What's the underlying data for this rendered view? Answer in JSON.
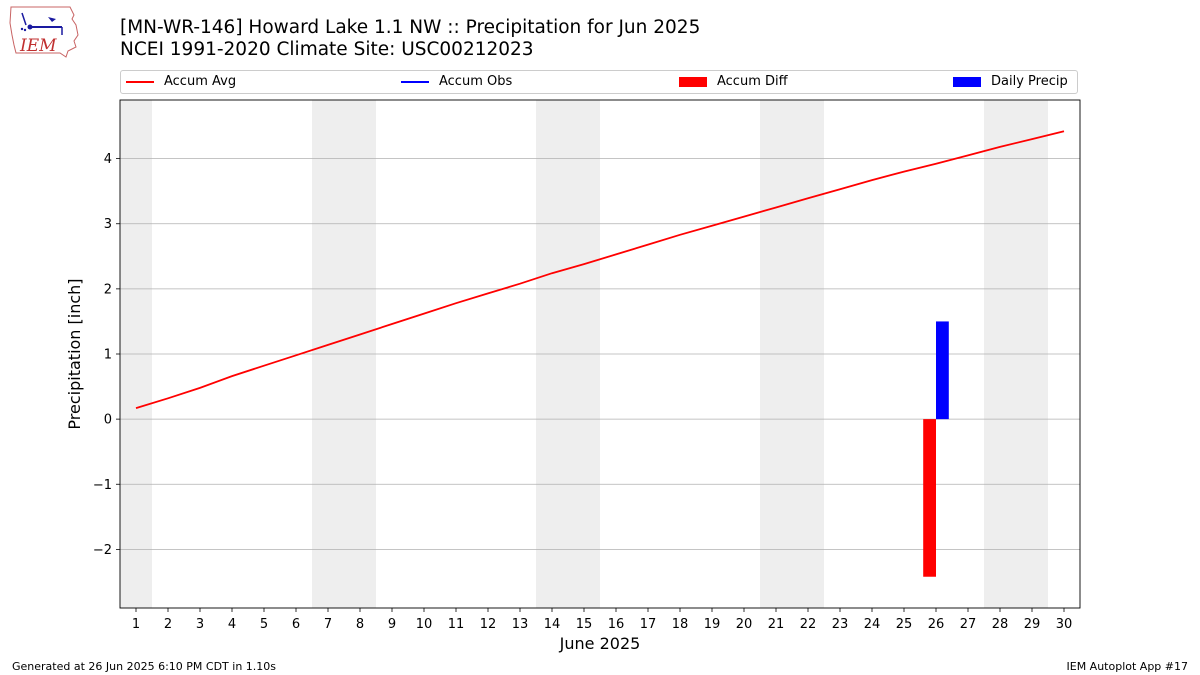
{
  "header": {
    "title_line1": "[MN-WR-146] Howard Lake 1.1 NW :: Precipitation for Jun 2025",
    "title_line2": "NCEI 1991-2020 Climate Site: USC00212023",
    "logo_text": "IEM"
  },
  "footer": {
    "generated": "Generated at 26 Jun 2025 6:10 PM CDT in 1.10s",
    "app": "IEM Autoplot App #17"
  },
  "colors": {
    "accum_avg": "#ff0000",
    "accum_obs": "#0000ff",
    "accum_diff": "#ff0000",
    "daily_precip": "#0000ff",
    "weekend_shade": "#eeeeee",
    "grid": "#b0b0b0"
  },
  "chart_data": {
    "type": "line",
    "xlabel": "June 2025",
    "ylabel": "Precipitation [inch]",
    "xlim": [
      0.5,
      30.5
    ],
    "ylim": [
      -2.9,
      4.9
    ],
    "x_ticks": [
      1,
      2,
      3,
      4,
      5,
      6,
      7,
      8,
      9,
      10,
      11,
      12,
      13,
      14,
      15,
      16,
      17,
      18,
      19,
      20,
      21,
      22,
      23,
      24,
      25,
      26,
      27,
      28,
      29,
      30
    ],
    "y_ticks": [
      -2,
      -1,
      0,
      1,
      2,
      3,
      4
    ],
    "y_tick_labels": [
      "−2",
      "−1",
      "0",
      "1",
      "2",
      "3",
      "4"
    ],
    "grid": "y",
    "legend_position": "top",
    "weekend_ranges": [
      [
        0.5,
        1.5
      ],
      [
        6.5,
        8.5
      ],
      [
        13.5,
        15.5
      ],
      [
        20.5,
        22.5
      ],
      [
        27.5,
        29.5
      ]
    ],
    "legend": [
      {
        "label": "Accum Avg",
        "kind": "line",
        "color": "#ff0000"
      },
      {
        "label": "Accum Obs",
        "kind": "line",
        "color": "#0000ff"
      },
      {
        "label": "Accum Diff",
        "kind": "bar",
        "color": "#ff0000"
      },
      {
        "label": "Daily Precip",
        "kind": "bar",
        "color": "#0000ff"
      }
    ],
    "series": [
      {
        "name": "Accum Avg",
        "type": "line",
        "x": [
          1,
          2,
          3,
          4,
          5,
          6,
          7,
          8,
          9,
          10,
          11,
          12,
          13,
          14,
          15,
          16,
          17,
          18,
          19,
          20,
          21,
          22,
          23,
          24,
          25,
          26,
          27,
          28,
          29,
          30
        ],
        "values": [
          0.17,
          0.32,
          0.48,
          0.66,
          0.82,
          0.98,
          1.14,
          1.3,
          1.46,
          1.62,
          1.78,
          1.93,
          2.08,
          2.24,
          2.38,
          2.53,
          2.68,
          2.83,
          2.97,
          3.11,
          3.25,
          3.39,
          3.53,
          3.67,
          3.8,
          3.92,
          4.05,
          4.18,
          4.3,
          4.42
        ]
      },
      {
        "name": "Accum Diff",
        "type": "bar",
        "x": [
          25.8
        ],
        "values": [
          -2.42
        ]
      },
      {
        "name": "Daily Precip",
        "type": "bar",
        "x": [
          26.2
        ],
        "values": [
          1.5
        ]
      }
    ]
  }
}
